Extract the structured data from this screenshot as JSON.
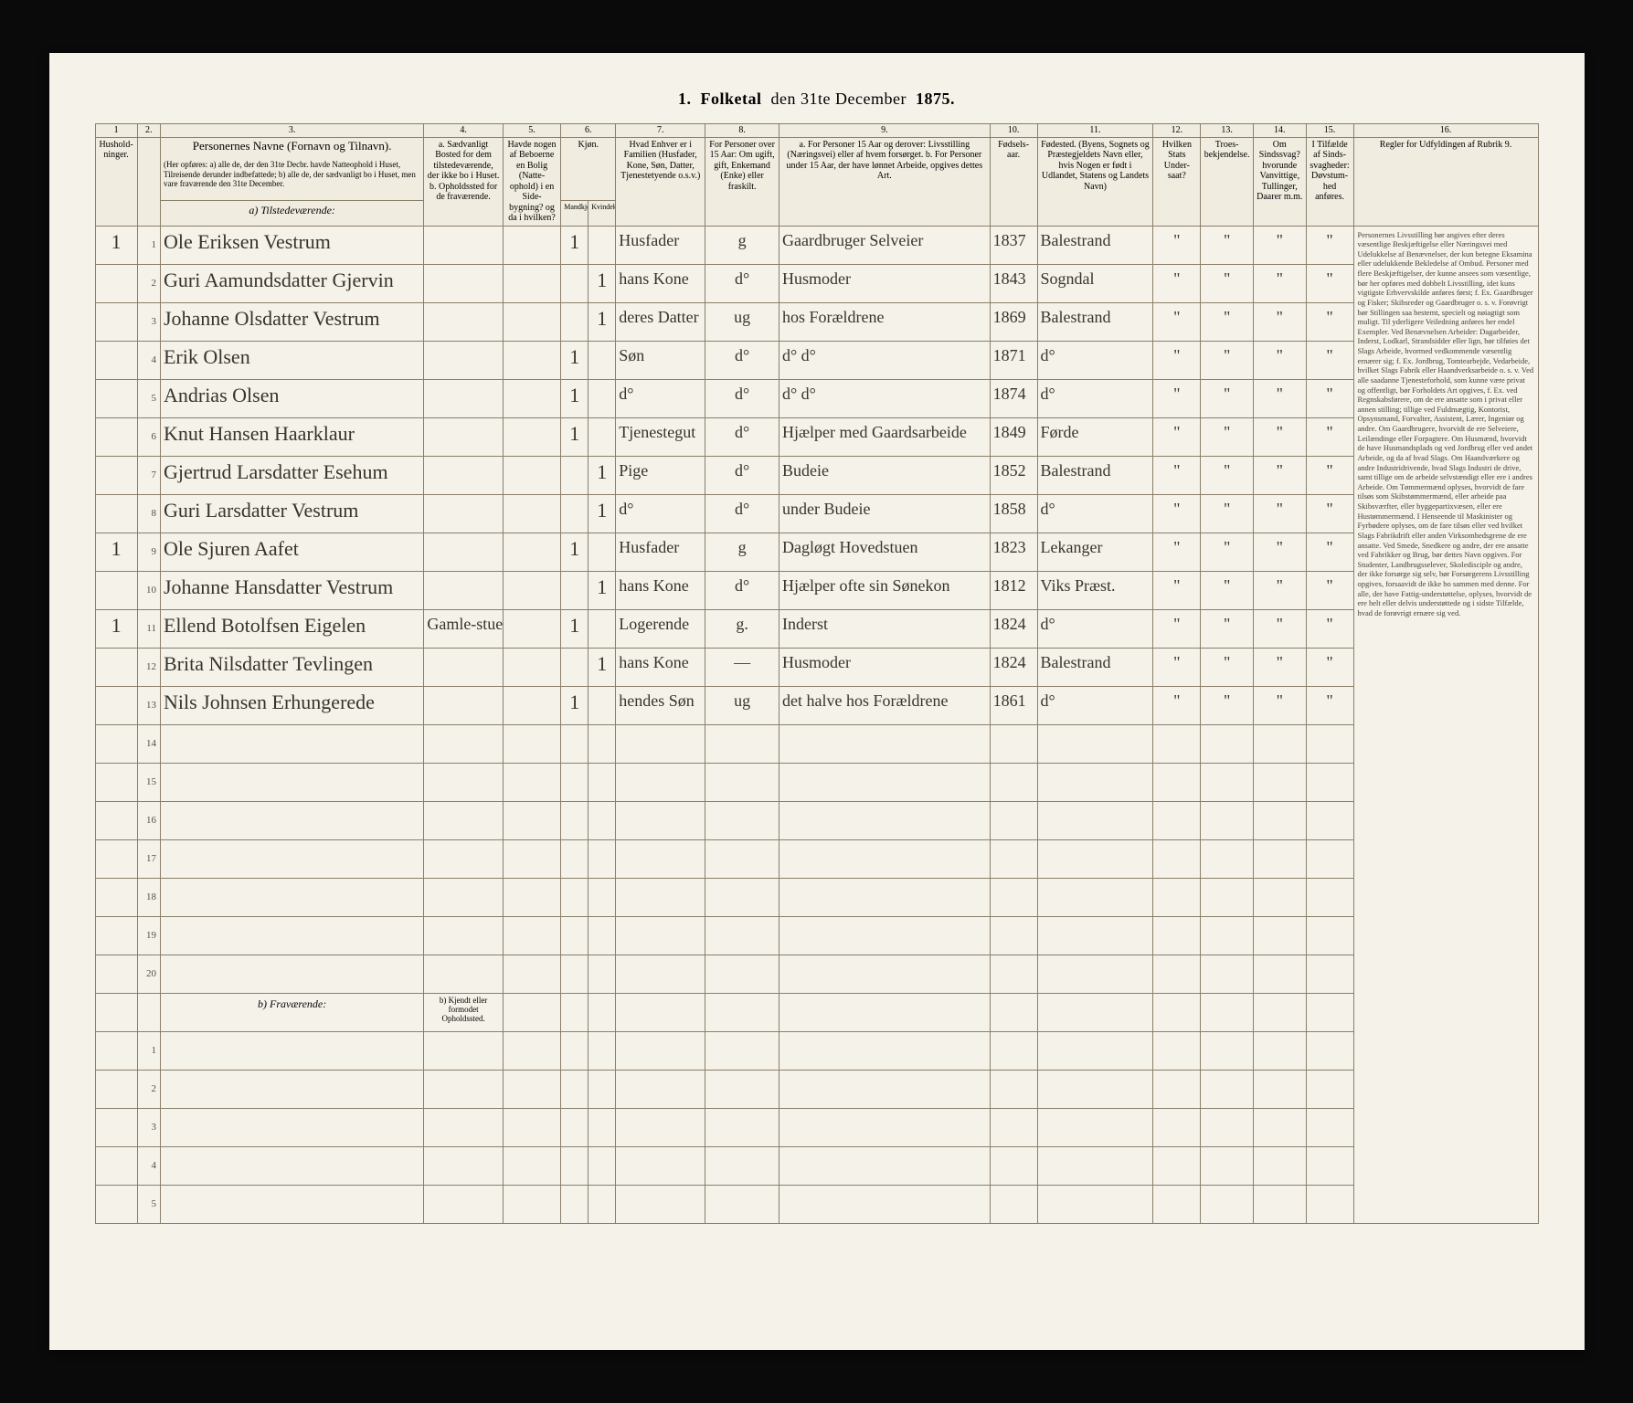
{
  "title": {
    "prefix": "1.",
    "main": "Folketal",
    "suffix": "den 31te December",
    "year": "1875."
  },
  "header": {
    "nums": [
      "1",
      "2.",
      "3.",
      "4.",
      "5.",
      "6.",
      "7.",
      "8.",
      "9.",
      "10.",
      "11.",
      "12.",
      "13.",
      "14.",
      "15.",
      "16."
    ],
    "c1": "Hushold-ninger.",
    "c2": "",
    "c3": "Personernes Navne (Fornavn og Tilnavn).",
    "c3sub": "(Her opføres: a) alle de, der den 31te Decbr. havde Natteophold i Huset, Tilreisende derunder indbefattede; b) alle de, der sædvanligt bo i Huset, men vare fraværende den 31te December.",
    "c4": "a. Sædvanligt Bosted for dem tilstedeværende, der ikke bo i Huset. b. Opholdssted for de fraværende.",
    "c5": "Havde nogen af Beboerne en Bolig (Natte-ophold) i en Side-bygning? og da i hvilken?",
    "c6": "Kjøn.",
    "c6a": "Mandkjøn.",
    "c6b": "Kvindekjøn.",
    "c7": "Hvad Enhver er i Familien (Husfader, Kone, Søn, Datter, Tjenestetyende o.s.v.)",
    "c8": "For Personer over 15 Aar: Om ugift, gift, Enkemand (Enke) eller fraskilt.",
    "c9": "a. For Personer 15 Aar og derover: Livsstilling (Næringsvei) eller af hvem forsørget. b. For Personer under 15 Aar, der have lønnet Arbeide, opgives dettes Art.",
    "c10": "Fødsels-aar.",
    "c11": "Fødested. (Byens, Sognets og Præstegjeldets Navn eller, hvis Nogen er født i Udlandet, Statens og Landets Navn)",
    "c12": "Hvilken Stats Under-saat?",
    "c13": "Troes-bekjendelse.",
    "c14": "Om Sindssvag? hvorunde Vanvittige, Tullinger, Daarer m.m.",
    "c15": "I Tilfælde af Sinds-svagheder: Døvstum-hed anføres.",
    "c16": "Regler for Udfyldingen af Rubrik 9."
  },
  "sections": {
    "present": "a) Tilstedeværende:",
    "absent": "b) Fraværende:",
    "absent_sub": "b) Kjendt eller formodet Opholdssted."
  },
  "rows": [
    {
      "hh": "1",
      "n": "1",
      "name": "Ole Eriksen Vestrum",
      "c4": "",
      "c5": "",
      "m": "1",
      "f": "",
      "rel": "Husfader",
      "stat": "g",
      "occ": "Gaardbruger Selveier",
      "yr": "1837",
      "bp": "Balestrand"
    },
    {
      "hh": "",
      "n": "2",
      "name": "Guri Aamundsdatter Gjervin",
      "c4": "",
      "c5": "",
      "m": "",
      "f": "1",
      "rel": "hans Kone",
      "stat": "d°",
      "occ": "Husmoder",
      "yr": "1843",
      "bp": "Sogndal"
    },
    {
      "hh": "",
      "n": "3",
      "name": "Johanne Olsdatter Vestrum",
      "c4": "",
      "c5": "",
      "m": "",
      "f": "1",
      "rel": "deres Datter",
      "stat": "ug",
      "occ": "hos Forældrene",
      "yr": "1869",
      "bp": "Balestrand"
    },
    {
      "hh": "",
      "n": "4",
      "name": "Erik Olsen",
      "c4": "",
      "c5": "",
      "m": "1",
      "f": "",
      "rel": "Søn",
      "stat": "d°",
      "occ": "d°    d°",
      "yr": "1871",
      "bp": "d°"
    },
    {
      "hh": "",
      "n": "5",
      "name": "Andrias Olsen",
      "c4": "",
      "c5": "",
      "m": "1",
      "f": "",
      "rel": "d°",
      "stat": "d°",
      "occ": "d°    d°",
      "yr": "1874",
      "bp": "d°"
    },
    {
      "hh": "",
      "n": "6",
      "name": "Knut Hansen Haarklaur",
      "c4": "",
      "c5": "",
      "m": "1",
      "f": "",
      "rel": "Tjenestegut",
      "stat": "d°",
      "occ": "Hjælper med Gaardsarbeide",
      "yr": "1849",
      "bp": "Førde"
    },
    {
      "hh": "",
      "n": "7",
      "name": "Gjertrud Larsdatter Esehum",
      "c4": "",
      "c5": "",
      "m": "",
      "f": "1",
      "rel": "Pige",
      "stat": "d°",
      "occ": "Budeie",
      "yr": "1852",
      "bp": "Balestrand"
    },
    {
      "hh": "",
      "n": "8",
      "name": "Guri Larsdatter Vestrum",
      "c4": "",
      "c5": "",
      "m": "",
      "f": "1",
      "rel": "d°",
      "stat": "d°",
      "occ": "under Budeie",
      "yr": "1858",
      "bp": "d°"
    },
    {
      "hh": "1",
      "n": "9",
      "name": "Ole Sjuren Aafet",
      "c4": "",
      "c5": "",
      "m": "1",
      "f": "",
      "rel": "Husfader",
      "stat": "g",
      "occ": "Dagløgt Hovedstuen",
      "yr": "1823",
      "bp": "Lekanger"
    },
    {
      "hh": "",
      "n": "10",
      "name": "Johanne Hansdatter Vestrum",
      "c4": "",
      "c5": "",
      "m": "",
      "f": "1",
      "rel": "hans Kone",
      "stat": "d°",
      "occ": "Hjælper ofte sin Sønekon",
      "yr": "1812",
      "bp": "Viks Præst."
    },
    {
      "hh": "1",
      "n": "11",
      "name": "Ellend Botolfsen Eigelen",
      "c4": "Gamle-stuen",
      "c5": "",
      "m": "1",
      "f": "",
      "rel": "Logerende",
      "stat": "g.",
      "occ": "Inderst",
      "yr": "1824",
      "bp": "d°"
    },
    {
      "hh": "",
      "n": "12",
      "name": "Brita Nilsdatter Tevlingen",
      "c4": "",
      "c5": "",
      "m": "",
      "f": "1",
      "rel": "hans Kone",
      "stat": "—",
      "occ": "Husmoder",
      "yr": "1824",
      "bp": "Balestrand"
    },
    {
      "hh": "",
      "n": "13",
      "name": "Nils Johnsen Erhungerede",
      "c4": "",
      "c5": "",
      "m": "1",
      "f": "",
      "rel": "hendes Søn",
      "stat": "ug",
      "occ": "det halve hos Forældrene",
      "yr": "1861",
      "bp": "d°"
    }
  ],
  "blank_present": [
    14,
    15,
    16,
    17,
    18,
    19,
    20
  ],
  "blank_absent": [
    1,
    2,
    3,
    4,
    5
  ],
  "sidetext": "Personernes Livsstilling bør angives efter deres væsentlige Beskjæftigelse eller Næringsvei med Udelukkelse af Benævnelser, der kun betegne Eksamina eller udelukkende Bekledelse af Ombud. Personer med flere Beskjæftigelser, der kunne ansees som væsentlige, bør her opføres med dobbelt Livsstilling, idet kuns vigtigste Erhvervskilde anføres først; f. Ex. Gaardbruger og Fisker; Skibsreder og Gaardbruger o. s. v. Forøvrigt bør Stillingen saa bestemt, specielt og nøiagtigt som muligt.\n\nTil yderligere Veiledning anføres her endel Exempler. Ved Benævnelsen Arbeider: Dagarbeider, Inderst, Lodkarl, Strandsidder eller lign, bør tilføies det Slags Arbeide, hvormed vedkommende væsentlig ernærer sig; f. Ex. Jordbrug, Tomtearbejde, Vedarbeide, hvilket Slags Fabrik eller Haandverksarbeide o. s. v.\n\nVed alle saadanne Tjenesteforhold, som kunne være privat og offentligt, bør Forholdets Art opgives, f. Ex. ved Regnskabsførere, om de ere ansatte som i privat eller annen stilling; tillige ved Fuldmægtig, Kontorist, Opsynsmand, Forvalter, Assistent, Lærer, Ingeniør og andre.\n\nOm Gaardbrugere, hvorvidt de ere Selveiere, Leilændinge eller Forpagtere. Om Husmænd, hvorvidt de have Husmandsplads og ved Jordbrug eller ved andet Arbeide, og da af hvad Slags.\n\nOm Haandværkere og andre Industridrivende, hvad Slags Industri de drive, samt tillige om de arbeide selvstændigt eller ere i andres Arbeide.\n\nOm Tømmermænd oplyses, hvorvidt de fare tilsøs som Skibstømmermænd, eller arbeide paa Skibsværfter, eller byggepartixvæsen, eller ere Hustømmermænd.\n\nI Henseende til Maskinister og Fyrbødere oplyses, om de fare tilsøs eller ved hvilket Slags Fabrikdrift eller anden Virksomhedsgrene de ere ansatte.\n\nVed Smede, Snedkere og andre, der ere ansatte ved Fabrikker og Brug, bør dettes Navn opgives.\n\nFor Studenter, Landbrugsselever, Skoledisciple og andre, der ikke forsørge sig selv, bør Forsørgerens Livsstilling opgives, forsaavidt de ikke bo sammen med denne.\n\nFor alle, der have Fattig-understøttelse, oplyses, hvorvidt de ere helt eller delvis understøttede og i sidste Tilfælde, hvad de forøvrigt ernære sig ved."
}
